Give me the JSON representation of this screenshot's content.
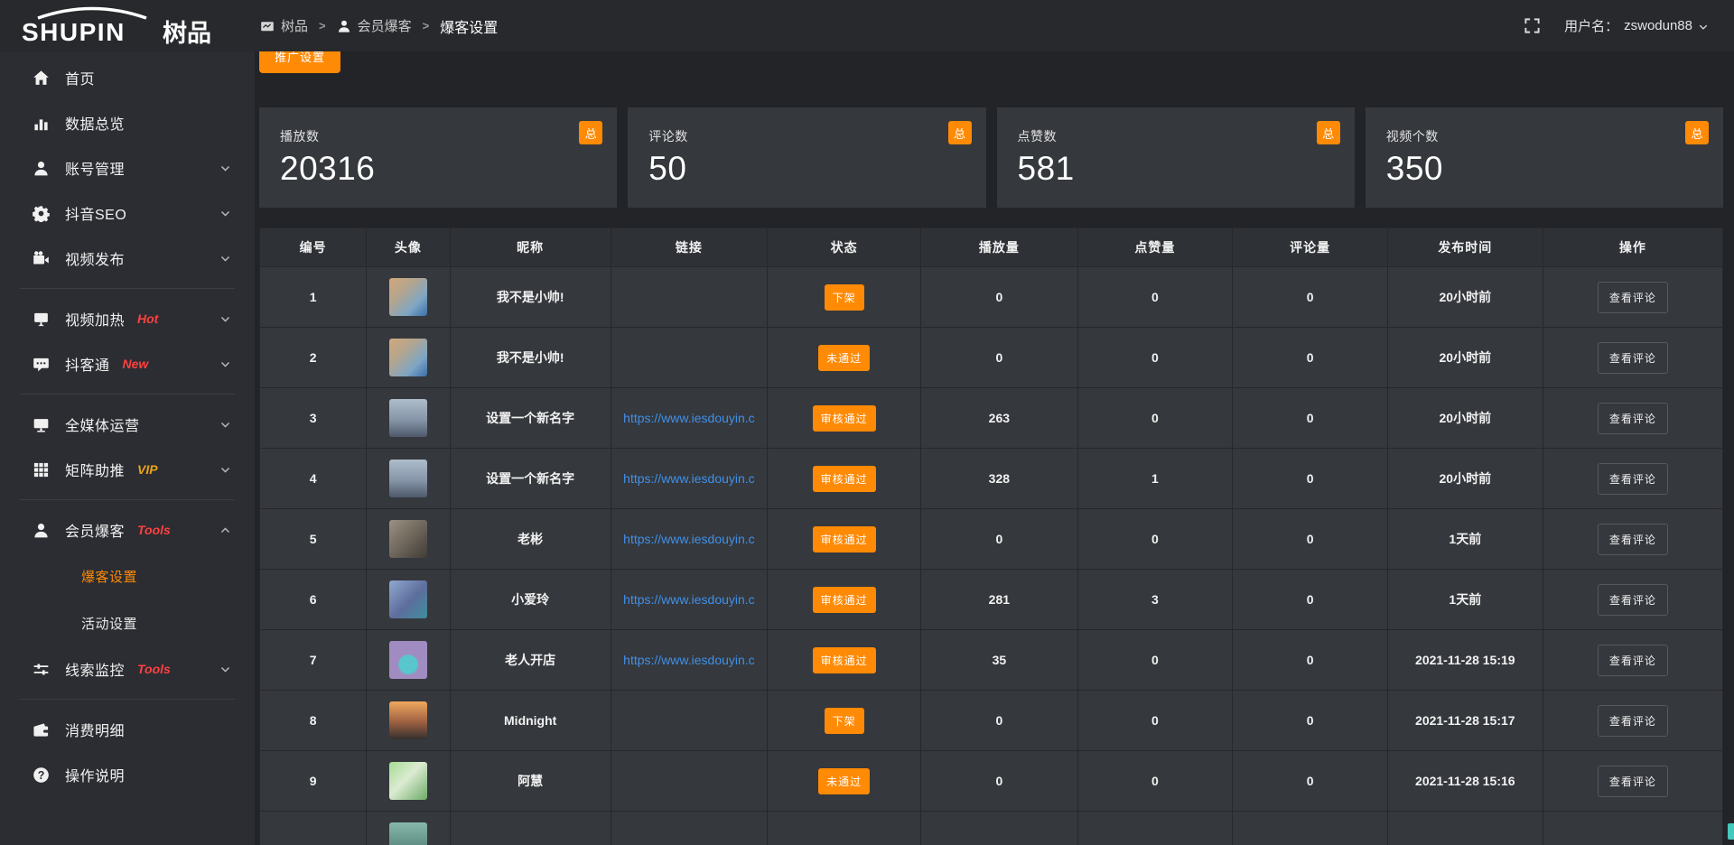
{
  "brand": {
    "logo_latin": "SHUPIN",
    "logo_cn": "树品"
  },
  "topbar": {
    "breadcrumb": [
      {
        "name": "shupin",
        "icon": "panel-icon",
        "label": "树品"
      },
      {
        "name": "member-baoke",
        "icon": "user-icon",
        "label": "会员爆客"
      },
      {
        "name": "baoke-settings",
        "icon": "",
        "label": "爆客设置"
      }
    ],
    "separator": ">",
    "user_label": "用户名：",
    "username": "zswodun88"
  },
  "sidebar": {
    "items": [
      {
        "name": "home",
        "icon": "home-icon",
        "label": "首页"
      },
      {
        "name": "data-overview",
        "icon": "bar-chart-icon",
        "label": "数据总览"
      },
      {
        "name": "account-management",
        "icon": "user-icon",
        "label": "账号管理",
        "chevron": "down"
      },
      {
        "name": "douyin-seo",
        "icon": "gear-icon",
        "label": "抖音SEO",
        "chevron": "down"
      },
      {
        "name": "video-publish",
        "icon": "video-camera-icon",
        "label": "视频发布",
        "chevron": "down"
      },
      {
        "divider": true
      },
      {
        "name": "video-heating",
        "icon": "screen-icon",
        "label": "视频加热",
        "badge": "Hot",
        "badge_color": "#ff4040",
        "chevron": "down"
      },
      {
        "name": "douketong",
        "icon": "chat-icon",
        "label": "抖客通",
        "badge": "New",
        "badge_color": "#ff4040",
        "chevron": "down"
      },
      {
        "divider": true
      },
      {
        "name": "omni-media",
        "icon": "monitor-icon",
        "label": "全媒体运营",
        "chevron": "down"
      },
      {
        "name": "matrix-boost",
        "icon": "grid-icon",
        "label": "矩阵助推",
        "badge": "VIP",
        "badge_color": "#eba418",
        "chevron": "down"
      },
      {
        "divider": true
      },
      {
        "name": "member-baoke",
        "icon": "member-icon",
        "label": "会员爆客",
        "badge": "Tools",
        "badge_color": "#ff4040",
        "chevron": "up"
      },
      {
        "sub": true,
        "name": "baoke-settings",
        "label": "爆客设置",
        "active": true
      },
      {
        "sub": true,
        "name": "activity-settings",
        "label": "活动设置"
      },
      {
        "name": "lead-monitor",
        "icon": "sliders-icon",
        "label": "线索监控",
        "badge": "Tools",
        "badge_color": "#ff4040",
        "chevron": "down"
      },
      {
        "divider": true
      },
      {
        "name": "consumption-detail",
        "icon": "wallet-icon",
        "label": "消费明细"
      },
      {
        "name": "operation-guide",
        "icon": "question-icon",
        "label": "操作说明"
      }
    ]
  },
  "main": {
    "promo_button_label": "推广设置",
    "stat_cards": [
      {
        "label": "播放数",
        "value": "20316",
        "badge": "总"
      },
      {
        "label": "评论数",
        "value": "50",
        "badge": "总"
      },
      {
        "label": "点赞数",
        "value": "581",
        "badge": "总"
      },
      {
        "label": "视频个数",
        "value": "350",
        "badge": "总"
      }
    ],
    "table": {
      "headers": [
        "编号",
        "头像",
        "昵称",
        "链接",
        "状态",
        "播放量",
        "点赞量",
        "评论量",
        "发布时间",
        "操作"
      ],
      "action_label": "查看评论",
      "rows": [
        {
          "id": "1",
          "avatar": "boy-photo",
          "nickname": "我不是小帅!",
          "link": "",
          "status": "下架",
          "plays": "0",
          "likes": "0",
          "comments": "0",
          "time": "20小时前"
        },
        {
          "id": "2",
          "avatar": "boy-photo",
          "nickname": "我不是小帅!",
          "link": "",
          "status": "未通过",
          "plays": "0",
          "likes": "0",
          "comments": "0",
          "time": "20小时前"
        },
        {
          "id": "3",
          "avatar": "sky-photo",
          "nickname": "设置一个新名字",
          "link": "https://www.iesdouyin.c",
          "status": "审核通过",
          "plays": "263",
          "likes": "0",
          "comments": "0",
          "time": "20小时前"
        },
        {
          "id": "4",
          "avatar": "sky-photo",
          "nickname": "设置一个新名字",
          "link": "https://www.iesdouyin.c",
          "status": "审核通过",
          "plays": "328",
          "likes": "1",
          "comments": "0",
          "time": "20小时前"
        },
        {
          "id": "5",
          "avatar": "man-photo",
          "nickname": "老彬",
          "link": "https://www.iesdouyin.c",
          "status": "审核通过",
          "plays": "0",
          "likes": "0",
          "comments": "0",
          "time": "1天前"
        },
        {
          "id": "6",
          "avatar": "woman-photo",
          "nickname": "小爱玲",
          "link": "https://www.iesdouyin.c",
          "status": "审核通过",
          "plays": "281",
          "likes": "3",
          "comments": "0",
          "time": "1天前"
        },
        {
          "id": "7",
          "avatar": "cartoon-avatar",
          "nickname": "老人开店",
          "link": "https://www.iesdouyin.c",
          "status": "审核通过",
          "plays": "35",
          "likes": "0",
          "comments": "0",
          "time": "2021-11-28 15:19"
        },
        {
          "id": "8",
          "avatar": "sunset-photo",
          "nickname": "Midnight",
          "link": "",
          "status": "下架",
          "plays": "0",
          "likes": "0",
          "comments": "0",
          "time": "2021-11-28 15:17"
        },
        {
          "id": "9",
          "avatar": "green-photo",
          "nickname": "阿慧",
          "link": "",
          "status": "未通过",
          "plays": "0",
          "likes": "0",
          "comments": "0",
          "time": "2021-11-28 15:16"
        },
        {
          "id": "",
          "avatar": "teal-photo",
          "nickname": "",
          "link": "",
          "status": "",
          "plays": "",
          "likes": "",
          "comments": "",
          "time": "",
          "partial": true
        }
      ]
    }
  },
  "colors": {
    "accent_orange": "#ff8a05",
    "badge_red": "#ff4040",
    "badge_vip": "#eba418",
    "link_blue": "#4090e8",
    "card_bg": "#35383d"
  }
}
